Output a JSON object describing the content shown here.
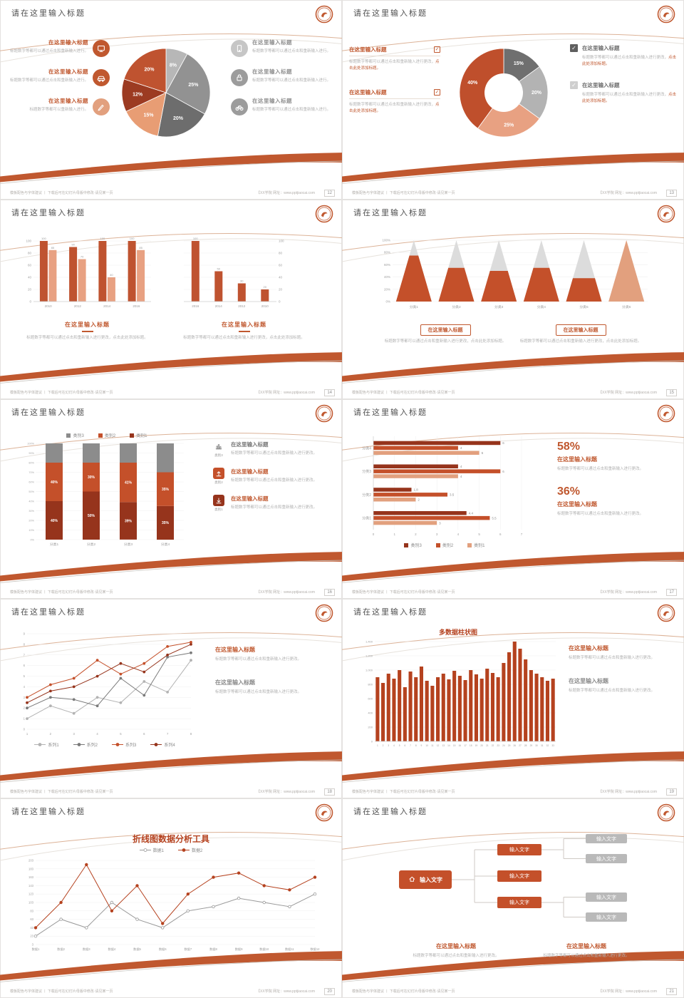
{
  "background": "#d9d7d5",
  "accent": "#c0582f",
  "common": {
    "slide_title": "请在这里输入标题",
    "footer_left": "模板配色与字体建议 丨 下载后可在幻灯片母版中修改·请见某一页",
    "footer_right": "【XX学院 网址：www.pptjiaocai.com"
  },
  "chart_data": [
    {
      "type": "pie",
      "labels": [
        "8%",
        "25%",
        "20%",
        "15%",
        "12%",
        "20%"
      ],
      "values": [
        8,
        25,
        20,
        15,
        12,
        20
      ],
      "colors": [
        "#b7b7b7",
        "#929292",
        "#6d6d6d",
        "#e89d74",
        "#9c3b22",
        "#bf5330"
      ]
    },
    {
      "type": "donut",
      "labels": [
        "15%",
        "20%",
        "25%",
        "40%"
      ],
      "values": [
        15,
        20,
        25,
        40
      ],
      "colors": [
        "#6f6f6f",
        "#b3b3b3",
        "#e8a182",
        "#bf4f2c"
      ]
    },
    {
      "type": "bar",
      "categories": [
        "2010",
        "2012",
        "2014",
        "2016"
      ],
      "yticks": [
        0,
        20,
        40,
        60,
        80,
        100
      ],
      "series": [
        {
          "name": "系列1",
          "color": "#bf5330",
          "values": [
            100,
            90,
            100,
            100
          ]
        },
        {
          "name": "系列2",
          "color": "#e8a182",
          "values": [
            85,
            70,
            40,
            85
          ]
        }
      ]
    },
    {
      "type": "bar",
      "axis_right": true,
      "categories": [
        "2016",
        "2014",
        "2012",
        "2010"
      ],
      "yticks": [
        0,
        20,
        40,
        60,
        80,
        100
      ],
      "series": [
        {
          "name": "系列1",
          "color": "#bf5330",
          "values": [
            100,
            50,
            30,
            20
          ]
        }
      ]
    },
    {
      "type": "cone",
      "categories": [
        "分类1",
        "分类2",
        "分类3",
        "分类4",
        "分类5",
        "分类6"
      ],
      "values": [
        75,
        55,
        50,
        55,
        38,
        100
      ],
      "yticks": [
        "0%",
        "20%",
        "40%",
        "60%",
        "80%",
        "100%"
      ],
      "fill": "#c4502a",
      "top_fill": "#dcdcdc",
      "last_fill": "#e2a07e"
    },
    {
      "type": "stacked",
      "categories": [
        "分类1",
        "分类2",
        "分类3",
        "分类4"
      ],
      "yticks": [
        "0%",
        "10%",
        "20%",
        "30%",
        "40%",
        "50%",
        "60%",
        "70%",
        "80%",
        "90%",
        "100%"
      ],
      "series": [
        {
          "name": "类别1",
          "color": "#96341c",
          "values": [
            40,
            50,
            39,
            35
          ]
        },
        {
          "name": "类别2",
          "color": "#c4502a",
          "values": [
            40,
            30,
            41,
            35
          ]
        },
        {
          "name": "类别3",
          "color": "#8c8c8c",
          "values": [
            20,
            20,
            20,
            30
          ]
        }
      ]
    },
    {
      "type": "hbar",
      "categories": [
        "分类4",
        "分类3",
        "分类2",
        "分类1"
      ],
      "xticks": [
        0,
        1,
        2,
        3,
        4,
        5,
        6,
        7
      ],
      "series": [
        {
          "name": "类别3",
          "color": "#96341c",
          "values": [
            6,
            4,
            1.8,
            4.4
          ]
        },
        {
          "name": "类别2",
          "color": "#c4502a",
          "values": [
            4,
            6,
            3.5,
            5.5
          ]
        },
        {
          "name": "类别1",
          "color": "#e2a07e",
          "values": [
            5,
            4,
            2,
            3
          ]
        }
      ]
    },
    {
      "type": "line",
      "x": [
        "1",
        "2",
        "3",
        "4",
        "5",
        "6",
        "7",
        "8"
      ],
      "ymin": 0,
      "ymax": 9,
      "yticks": [
        "0",
        "1",
        "2",
        "3",
        "4",
        "5",
        "6",
        "7",
        "8",
        "9"
      ],
      "series": [
        {
          "name": "系列1",
          "color": "#b3b3b3",
          "values": [
            1,
            2.2,
            1.5,
            3,
            2.5,
            4.5,
            3.5,
            6.5
          ]
        },
        {
          "name": "系列2",
          "color": "#7a7a7a",
          "values": [
            2,
            3,
            2.8,
            2.2,
            4.8,
            3.2,
            6.8,
            7.2
          ]
        },
        {
          "name": "系列3",
          "color": "#c4502a",
          "values": [
            3,
            4.2,
            4.8,
            6.5,
            5.2,
            6.2,
            7.8,
            8.2
          ]
        },
        {
          "name": "系列4",
          "color": "#96341c",
          "values": [
            2.5,
            3.6,
            4,
            5,
            6.2,
            5.4,
            7,
            8
          ]
        }
      ]
    },
    {
      "type": "column",
      "title": "多数据柱状图",
      "x": [
        "1",
        "2",
        "3",
        "4",
        "5",
        "6",
        "7",
        "8",
        "9",
        "10",
        "11",
        "12",
        "13",
        "14",
        "15",
        "16",
        "17",
        "18",
        "19",
        "20",
        "21",
        "22",
        "23",
        "24",
        "25",
        "26",
        "27",
        "28",
        "29",
        "30",
        "31",
        "32",
        "33"
      ],
      "ymax": 1400,
      "yticks": [
        "0",
        "200",
        "400",
        "600",
        "800",
        "1,000",
        "1,200",
        "1,400"
      ],
      "values": [
        900,
        820,
        950,
        880,
        1000,
        760,
        980,
        900,
        1050,
        850,
        780,
        900,
        950,
        870,
        990,
        920,
        860,
        1000,
        940,
        880,
        1020,
        960,
        900,
        1100,
        1250,
        1400,
        1300,
        1150,
        1000,
        950,
        900,
        850,
        880
      ],
      "color": "#b5421f"
    },
    {
      "type": "line",
      "title": "折线图数据分析工具",
      "x": [
        "数据1",
        "数据2",
        "数据3",
        "数据4",
        "数据5",
        "数据6",
        "数据7",
        "数据8",
        "数据9",
        "数据10",
        "数据11",
        "数据12"
      ],
      "ymin": 3,
      "ymax": 203,
      "yticks": [
        "3",
        "23",
        "43",
        "63",
        "83",
        "103",
        "123",
        "143",
        "163",
        "183",
        "203"
      ],
      "series": [
        {
          "name": "数据1",
          "color": "#9a9a9a",
          "open": true,
          "values": [
            23,
            63,
            43,
            103,
            63,
            43,
            83,
            93,
            113,
            103,
            93,
            123
          ]
        },
        {
          "name": "数据2",
          "color": "#b5421f",
          "values": [
            43,
            103,
            193,
            83,
            143,
            53,
            123,
            163,
            173,
            143,
            133,
            163
          ]
        }
      ]
    }
  ],
  "slides": [
    {
      "page": "12",
      "title": "请在这里输入标题",
      "left_items": [
        {
          "icon": "monitor-icon",
          "title": "在这里输入标题",
          "desc": "标题数字等都可以通过点击和重新输入进行。"
        },
        {
          "icon": "car-icon",
          "title": "在这里输入标题",
          "desc": "标题数字等都可以通过点击和重新输入进行。"
        },
        {
          "icon": "pen-icon",
          "title": "在这里输入标题",
          "desc": "标题数字等都可以重新输入进行。"
        }
      ],
      "right_items": [
        {
          "icon": "phone-icon",
          "title": "在这里输入标题",
          "desc": "标题数字等都可以通过点击和重新输入进行。"
        },
        {
          "icon": "lock-icon",
          "title": "在这里输入标题",
          "desc": "标题数字等都可以通过点击和重新输入进行。"
        },
        {
          "icon": "bike-icon",
          "title": "在这里输入标题",
          "desc": "标题数字等都可以通过点击和重新输入进行。"
        }
      ]
    },
    {
      "page": "13",
      "title": "请在这里输入标题",
      "left_items": [
        {
          "title": "在这里输入标题",
          "desc": "标题数字等都可以通过点击和重新输入进行更改，",
          "red": "点击此处添加标题。"
        },
        {
          "title": "在这里输入标题",
          "desc": "标题数字等都可以通过点击和重新输入进行更改，",
          "red": "点击此处添加标题。"
        }
      ],
      "right_items": [
        {
          "checked": true,
          "title": "在这里输入标题",
          "desc": "标题数字等都可以通过点击和重新输入进行更改，",
          "red": "点击此处添加标题。"
        },
        {
          "checked": false,
          "title": "在这里输入标题",
          "desc": "标题数字等都可以通过点击和重新输入进行更改，",
          "red": "点击此处添加标题。"
        }
      ]
    },
    {
      "page": "14",
      "title": "请在这里输入标题",
      "blocks": [
        {
          "title": "在这里输入标题",
          "desc": "标题数字等都可以通过点击和重新输入进行更改，点击此处添加标题。"
        },
        {
          "title": "在这里输入标题",
          "desc": "标题数字等都可以通过点击和重新输入进行更改，点击此处添加标题。"
        }
      ]
    },
    {
      "page": "15",
      "title": "请在这里输入标题",
      "blocks": [
        {
          "title": "在这里输入标题",
          "desc": "标题数字等都可以通过点击和重新输入进行更改，点击此处添加标题。"
        },
        {
          "title": "在这里输入标题",
          "desc": "标题数字等都可以通过点击和重新输入进行更改，点击此处添加标题。"
        }
      ]
    },
    {
      "page": "16",
      "title": "请在这里输入标题",
      "legend": [
        {
          "label": "类别3",
          "color": "#8c8c8c"
        },
        {
          "label": "类别2",
          "color": "#c4502a"
        },
        {
          "label": "类别1",
          "color": "#96341c"
        }
      ],
      "right_items": [
        {
          "icon": "chart-icon",
          "tag": "类别3",
          "title": "在这里输入标题",
          "desc": "标题数字等都可以通过点击和重新输入进行更改。",
          "accent": false
        },
        {
          "icon": "upload-icon",
          "tag": "类别2",
          "title": "在这里输入标题",
          "desc": "标题数字等都可以通过点击和重新输入进行更改。",
          "accent": true
        },
        {
          "icon": "download-icon",
          "tag": "类别1",
          "title": "在这里输入标题",
          "desc": "标题数字等都可以通过点击和重新输入进行更改。",
          "accent": true
        }
      ]
    },
    {
      "page": "17",
      "title": "请在这里输入标题",
      "legend": [
        {
          "label": "类别3",
          "color": "#96341c"
        },
        {
          "label": "类别2",
          "color": "#c4502a"
        },
        {
          "label": "类别1",
          "color": "#e2a07e"
        }
      ],
      "stats": [
        {
          "value": "58%",
          "title": "在这里输入标题",
          "desc": "标题数字等都可以通过点击和重新输入进行更改。"
        },
        {
          "value": "36%",
          "title": "在这里输入标题",
          "desc": "标题数字等都可以通过点击和重新输入进行更改。"
        }
      ]
    },
    {
      "page": "18",
      "title": "请在这里输入标题",
      "legend": [
        {
          "label": "系列1",
          "color": "#b3b3b3"
        },
        {
          "label": "系列2",
          "color": "#7a7a7a"
        },
        {
          "label": "系列3",
          "color": "#c4502a"
        },
        {
          "label": "系列4",
          "color": "#96341c"
        }
      ],
      "blocks": [
        {
          "title": "在这里输入标题",
          "desc": "标题数字等都可以通过点击和重新输入进行更改。"
        },
        {
          "title": "在这里输入标题",
          "desc": "标题数字等都可以通过点击和重新输入进行更改。"
        }
      ]
    },
    {
      "page": "19",
      "title": "请在这里输入标题",
      "chart_title": "多数据柱状图",
      "blocks": [
        {
          "title": "在这里输入标题",
          "desc": "标题数字等都可以通过点击和重新输入进行更改。"
        },
        {
          "title": "在这里输入标题",
          "desc": "标题数字等都可以通过点击和重新输入进行更改。"
        }
      ]
    },
    {
      "page": "20",
      "title": "请在这里输入标题",
      "chart_title": "折线图数据分析工具",
      "legend": [
        {
          "label": "数据1",
          "color": "#9a9a9a",
          "open": true
        },
        {
          "label": "数据2",
          "color": "#b5421f"
        }
      ]
    },
    {
      "page": "21",
      "title": "请在这里输入标题",
      "root_label": "输入文字",
      "mid_nodes": [
        "输入文字",
        "输入文字",
        "输入文字"
      ],
      "right_nodes": [
        "输入文字",
        "输入文字",
        "输入文字",
        "输入文字"
      ],
      "blocks": [
        {
          "title": "在这里输入标题",
          "desc": "标题数字等都可以通过点击和重新输入进行更改。"
        },
        {
          "title": "在这里输入标题",
          "desc": "标题数字等都可以通过点击和重新输入进行更改。"
        }
      ]
    }
  ]
}
